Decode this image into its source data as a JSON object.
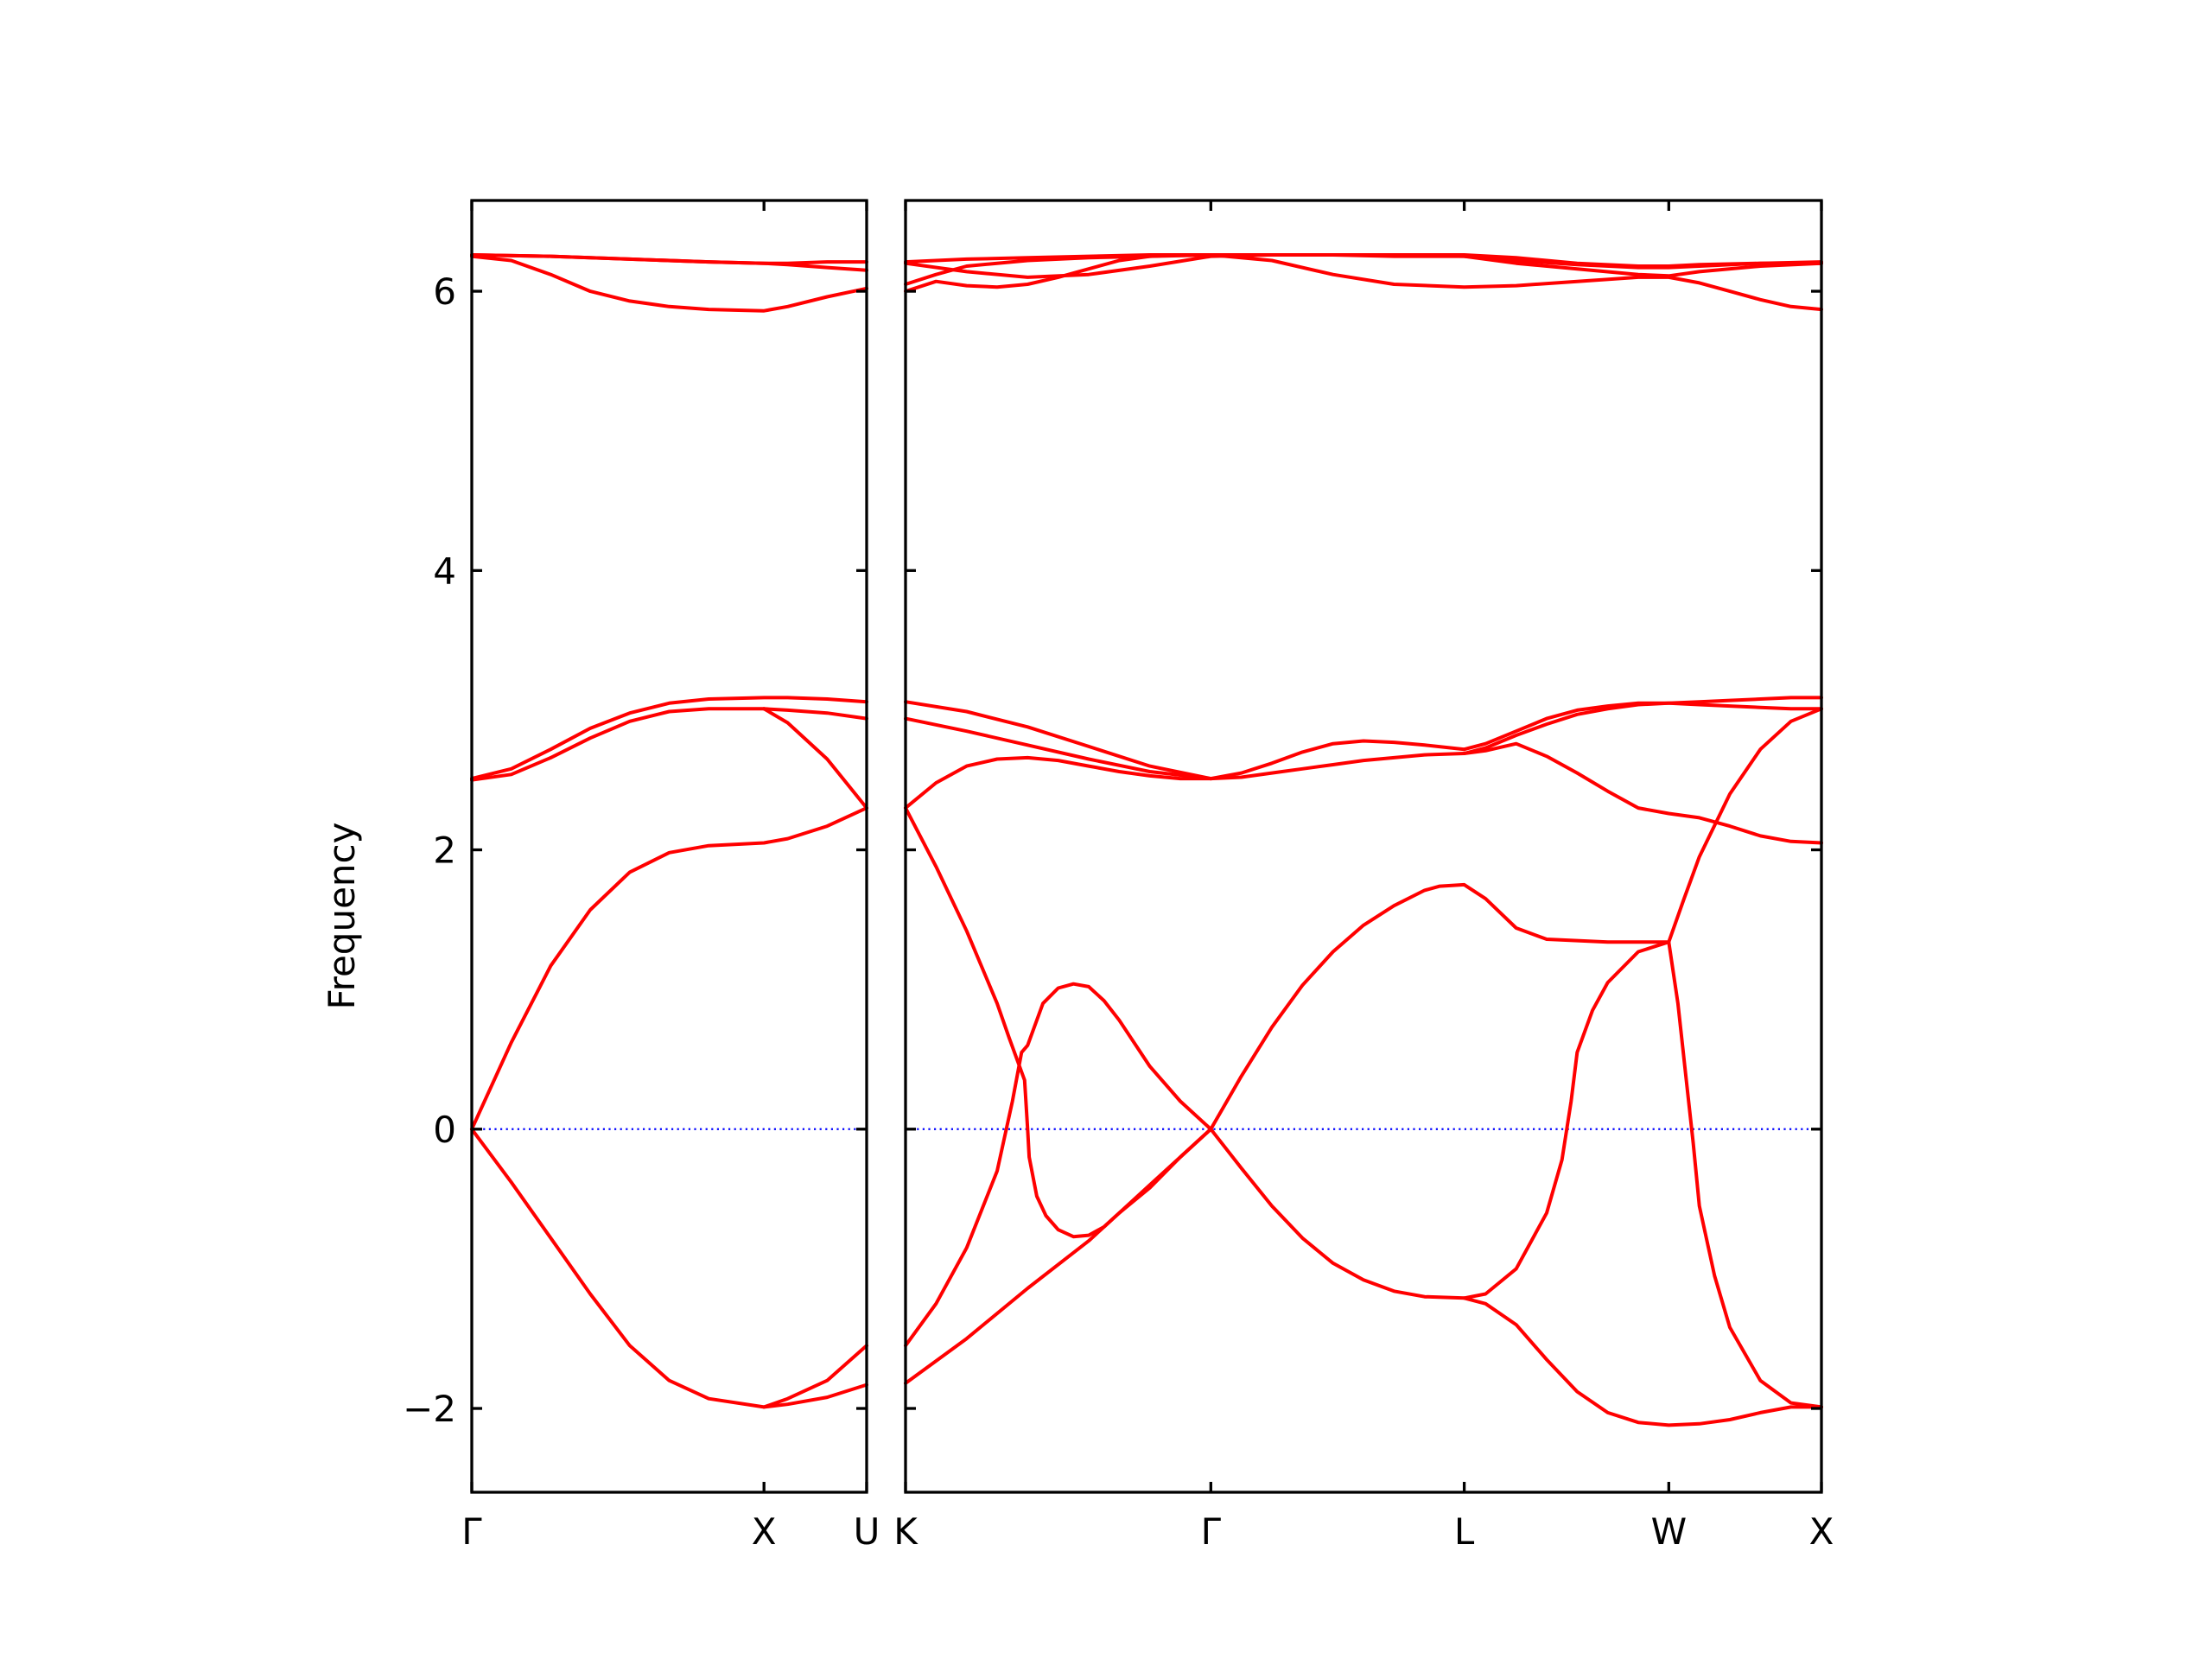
{
  "chart_data": {
    "type": "line",
    "ylabel": "Frequency",
    "ylim": [
      -2.6,
      6.65
    ],
    "yticks": [
      -2,
      0,
      2,
      4,
      6
    ],
    "ytick_labels": [
      "−2",
      "0",
      "2",
      "4",
      "6"
    ],
    "band_color": "#ff0000",
    "zero_line_color": "#0000ff",
    "grid": false,
    "panels": [
      {
        "name": "panel-gamma-x-u",
        "xlim": [
          0,
          1.0
        ],
        "xticks": [
          {
            "x": 0.0,
            "label": "Γ"
          },
          {
            "x": 0.74,
            "label": "X"
          },
          {
            "x": 1.0,
            "label": "U"
          }
        ],
        "series": [
          {
            "x": [
              0,
              0.1,
              0.2,
              0.3,
              0.4,
              0.5,
              0.6,
              0.74,
              0.8,
              0.9,
              1.0
            ],
            "y": [
              0.0,
              -0.38,
              -0.78,
              -1.18,
              -1.55,
              -1.8,
              -1.93,
              -1.99,
              -1.97,
              -1.92,
              -1.83
            ]
          },
          {
            "x": [
              0,
              0.1,
              0.2,
              0.3,
              0.4,
              0.5,
              0.6,
              0.74,
              0.8,
              0.9,
              1.0
            ],
            "y": [
              0.0,
              0.62,
              1.17,
              1.57,
              1.84,
              1.98,
              2.03,
              2.05,
              2.08,
              2.17,
              2.3
            ]
          },
          {
            "x": [
              0.74,
              0.8,
              0.9,
              1.0
            ],
            "y": [
              -1.99,
              -1.93,
              -1.8,
              -1.55
            ]
          },
          {
            "x": [
              0,
              0.1,
              0.2,
              0.3,
              0.4,
              0.5,
              0.6,
              0.74
            ],
            "y": [
              2.5,
              2.54,
              2.66,
              2.8,
              2.92,
              2.99,
              3.01,
              3.01
            ]
          },
          {
            "x": [
              0.74,
              0.8,
              0.9,
              1.0
            ],
            "y": [
              3.01,
              2.91,
              2.65,
              2.3
            ]
          },
          {
            "x": [
              0,
              0.1,
              0.2,
              0.3,
              0.4,
              0.5,
              0.6,
              0.74,
              0.8,
              0.9,
              1.0
            ],
            "y": [
              2.51,
              2.58,
              2.72,
              2.87,
              2.98,
              3.05,
              3.08,
              3.09,
              3.09,
              3.08,
              3.06
            ]
          },
          {
            "x": [
              0.74,
              0.8,
              0.9,
              1.0
            ],
            "y": [
              3.01,
              3.0,
              2.98,
              2.94
            ]
          },
          {
            "x": [
              0,
              0.1,
              0.2,
              0.3,
              0.4,
              0.5,
              0.6,
              0.74,
              0.8,
              0.9,
              1.0
            ],
            "y": [
              6.25,
              6.22,
              6.12,
              6.0,
              5.93,
              5.89,
              5.87,
              5.86,
              5.89,
              5.96,
              6.02
            ]
          },
          {
            "x": [
              0,
              0.2,
              0.4,
              0.6,
              0.74,
              0.8,
              0.9,
              1.0
            ],
            "y": [
              6.26,
              6.25,
              6.23,
              6.21,
              6.2,
              6.19,
              6.17,
              6.15
            ]
          },
          {
            "x": [
              0,
              0.2,
              0.4,
              0.6,
              0.74,
              0.8,
              0.9,
              1.0
            ],
            "y": [
              6.26,
              6.25,
              6.23,
              6.21,
              6.2,
              6.2,
              6.21,
              6.21
            ]
          }
        ]
      },
      {
        "name": "panel-k-gamma-l-w-x",
        "xlim": [
          0,
          3.0
        ],
        "xticks": [
          {
            "x": 0.0,
            "label": "K"
          },
          {
            "x": 1.0,
            "label": "Γ"
          },
          {
            "x": 1.83,
            "label": "L"
          },
          {
            "x": 2.5,
            "label": "W"
          },
          {
            "x": 3.0,
            "label": "X"
          }
        ],
        "series": [
          {
            "x": [
              0,
              0.1,
              0.2,
              0.3,
              0.35,
              0.38,
              0.4,
              0.45,
              0.5,
              0.55,
              0.6,
              0.65,
              0.7,
              0.8,
              0.9,
              1.0
            ],
            "y": [
              -1.55,
              -1.25,
              -0.85,
              -0.3,
              0.2,
              0.55,
              0.6,
              0.9,
              1.01,
              1.04,
              1.02,
              0.92,
              0.78,
              0.45,
              0.2,
              0.0
            ]
          },
          {
            "x": [
              0,
              0.1,
              0.2,
              0.3,
              0.34,
              0.345,
              0.39,
              0.4,
              0.405,
              0.43,
              0.46,
              0.5,
              0.55,
              0.6,
              0.65,
              0.7,
              0.8,
              0.9,
              1.0
            ],
            "y": [
              2.3,
              1.88,
              1.42,
              0.9,
              0.65,
              0.62,
              0.35,
              0.0,
              -0.2,
              -0.48,
              -0.62,
              -0.72,
              -0.77,
              -0.76,
              -0.7,
              -0.6,
              -0.42,
              -0.2,
              0.0
            ]
          },
          {
            "x": [
              0,
              0.2,
              0.4,
              0.6,
              0.7,
              0.8,
              0.9,
              1.0
            ],
            "y": [
              -1.82,
              -1.5,
              -1.14,
              -0.8,
              -0.6,
              -0.4,
              -0.2,
              0.0
            ]
          },
          {
            "x": [
              1.0,
              1.1,
              1.2,
              1.3,
              1.4,
              1.5,
              1.6,
              1.7,
              1.75,
              1.83,
              1.9,
              2.0,
              2.1,
              2.2,
              2.3,
              2.4,
              2.5,
              2.55,
              2.6,
              2.7,
              2.8,
              2.9,
              3.0
            ],
            "y": [
              0.0,
              0.38,
              0.73,
              1.03,
              1.27,
              1.46,
              1.6,
              1.71,
              1.74,
              1.75,
              1.65,
              1.44,
              1.36,
              1.35,
              1.34,
              1.34,
              1.34,
              1.65,
              1.95,
              2.4,
              2.72,
              2.92,
              3.01
            ]
          },
          {
            "x": [
              1.0,
              1.1,
              1.2,
              1.3,
              1.4,
              1.5,
              1.6,
              1.7,
              1.83,
              1.9,
              2.0,
              2.1,
              2.15,
              2.18,
              2.2,
              2.25,
              2.3,
              2.4,
              2.5
            ],
            "y": [
              0.0,
              -0.28,
              -0.55,
              -0.78,
              -0.96,
              -1.08,
              -1.16,
              -1.2,
              -1.21,
              -1.18,
              -1.0,
              -0.6,
              -0.22,
              0.2,
              0.55,
              0.85,
              1.05,
              1.27,
              1.34
            ]
          },
          {
            "x": [
              1.83,
              1.9,
              2.0,
              2.1,
              2.2,
              2.3,
              2.4,
              2.5,
              2.6,
              2.7,
              2.8,
              2.9,
              3.0
            ],
            "y": [
              -1.21,
              -1.25,
              -1.4,
              -1.65,
              -1.88,
              -2.03,
              -2.1,
              -2.12,
              -2.11,
              -2.08,
              -2.03,
              -1.99,
              -1.99
            ]
          },
          {
            "x": [
              2.5,
              2.53,
              2.56,
              2.58,
              2.6,
              2.65,
              2.7,
              2.8,
              2.9,
              3.0
            ],
            "y": [
              1.34,
              0.9,
              0.3,
              -0.1,
              -0.55,
              -1.05,
              -1.42,
              -1.8,
              -1.96,
              -1.99
            ]
          },
          {
            "x": [
              0,
              0.1,
              0.2,
              0.3,
              0.4,
              0.5,
              0.6,
              0.7,
              0.8,
              0.9,
              1.0,
              1.1,
              1.2,
              1.3,
              1.4,
              1.5,
              1.6,
              1.7,
              1.83
            ],
            "y": [
              2.3,
              2.48,
              2.6,
              2.65,
              2.66,
              2.64,
              2.6,
              2.56,
              2.53,
              2.51,
              2.51,
              2.52,
              2.55,
              2.58,
              2.61,
              2.64,
              2.66,
              2.68,
              2.69
            ]
          },
          {
            "x": [
              0,
              0.2,
              0.4,
              0.6,
              0.8,
              1.0
            ],
            "y": [
              2.94,
              2.85,
              2.75,
              2.65,
              2.56,
              2.51
            ]
          },
          {
            "x": [
              0,
              0.2,
              0.4,
              0.6,
              0.8,
              1.0
            ],
            "y": [
              3.06,
              2.99,
              2.88,
              2.74,
              2.6,
              2.51
            ]
          },
          {
            "x": [
              1.0,
              1.1,
              1.2,
              1.3,
              1.4,
              1.5,
              1.6,
              1.7,
              1.83
            ],
            "y": [
              2.51,
              2.55,
              2.62,
              2.7,
              2.76,
              2.78,
              2.77,
              2.75,
              2.72
            ]
          },
          {
            "x": [
              1.83,
              1.9,
              2.0,
              2.1,
              2.2,
              2.3,
              2.4,
              2.5,
              2.6,
              2.7,
              2.8,
              2.9,
              3.0
            ],
            "y": [
              2.69,
              2.71,
              2.76,
              2.67,
              2.55,
              2.42,
              2.3,
              2.26,
              2.23,
              2.17,
              2.1,
              2.06,
              2.05
            ]
          },
          {
            "x": [
              1.83,
              1.9,
              2.0,
              2.1,
              2.2,
              2.3,
              2.4,
              2.5,
              2.6,
              2.7,
              2.8,
              2.9,
              3.0
            ],
            "y": [
              2.72,
              2.76,
              2.85,
              2.94,
              3.0,
              3.03,
              3.05,
              3.05,
              3.04,
              3.03,
              3.02,
              3.01,
              3.01
            ]
          },
          {
            "x": [
              1.83,
              1.9,
              2.0,
              2.1,
              2.2,
              2.3,
              2.4,
              2.5,
              2.6,
              2.7,
              2.8,
              2.9,
              3.0
            ],
            "y": [
              2.69,
              2.73,
              2.82,
              2.9,
              2.97,
              3.01,
              3.04,
              3.05,
              3.06,
              3.07,
              3.08,
              3.09,
              3.09
            ]
          },
          {
            "x": [
              0,
              0.1,
              0.2,
              0.3,
              0.4,
              0.5,
              0.6,
              0.7,
              0.8,
              0.9,
              1.0,
              1.2,
              1.4,
              1.6,
              1.83,
              2.0,
              2.2,
              2.4,
              2.5,
              2.6,
              2.7,
              2.8,
              2.9,
              3.0
            ],
            "y": [
              6.0,
              6.07,
              6.04,
              6.03,
              6.05,
              6.1,
              6.16,
              6.22,
              6.25,
              6.26,
              6.26,
              6.22,
              6.12,
              6.05,
              6.03,
              6.04,
              6.07,
              6.1,
              6.1,
              6.06,
              6.0,
              5.94,
              5.89,
              5.87
            ]
          },
          {
            "x": [
              0,
              0.1,
              0.2,
              0.3,
              0.4,
              0.5,
              0.6,
              0.8,
              1.0,
              1.2,
              1.4,
              1.6,
              1.83,
              2.0,
              2.2,
              2.4,
              2.5,
              2.6,
              2.8,
              3.0
            ],
            "y": [
              6.05,
              6.12,
              6.18,
              6.2,
              6.22,
              6.23,
              6.24,
              6.25,
              6.26,
              6.26,
              6.26,
              6.26,
              6.25,
              6.2,
              6.16,
              6.12,
              6.11,
              6.14,
              6.18,
              6.2
            ]
          },
          {
            "x": [
              0,
              0.2,
              0.4,
              0.6,
              0.8,
              1.0,
              1.2,
              1.4,
              1.6,
              1.83,
              2.0,
              2.2,
              2.4,
              2.5,
              2.6,
              2.8,
              3.0
            ],
            "y": [
              6.2,
              6.14,
              6.1,
              6.12,
              6.18,
              6.25,
              6.26,
              6.26,
              6.25,
              6.25,
              6.22,
              6.19,
              6.17,
              6.17,
              6.18,
              6.2,
              6.2
            ]
          },
          {
            "x": [
              0,
              0.2,
              0.4,
              0.6,
              0.8,
              1.0,
              1.2,
              1.4,
              1.6,
              1.83,
              2.0,
              2.2,
              2.4,
              2.5,
              2.6,
              2.8,
              3.0
            ],
            "y": [
              6.21,
              6.23,
              6.24,
              6.25,
              6.26,
              6.26,
              6.26,
              6.26,
              6.26,
              6.26,
              6.24,
              6.2,
              6.18,
              6.18,
              6.19,
              6.2,
              6.21
            ]
          }
        ]
      }
    ]
  }
}
